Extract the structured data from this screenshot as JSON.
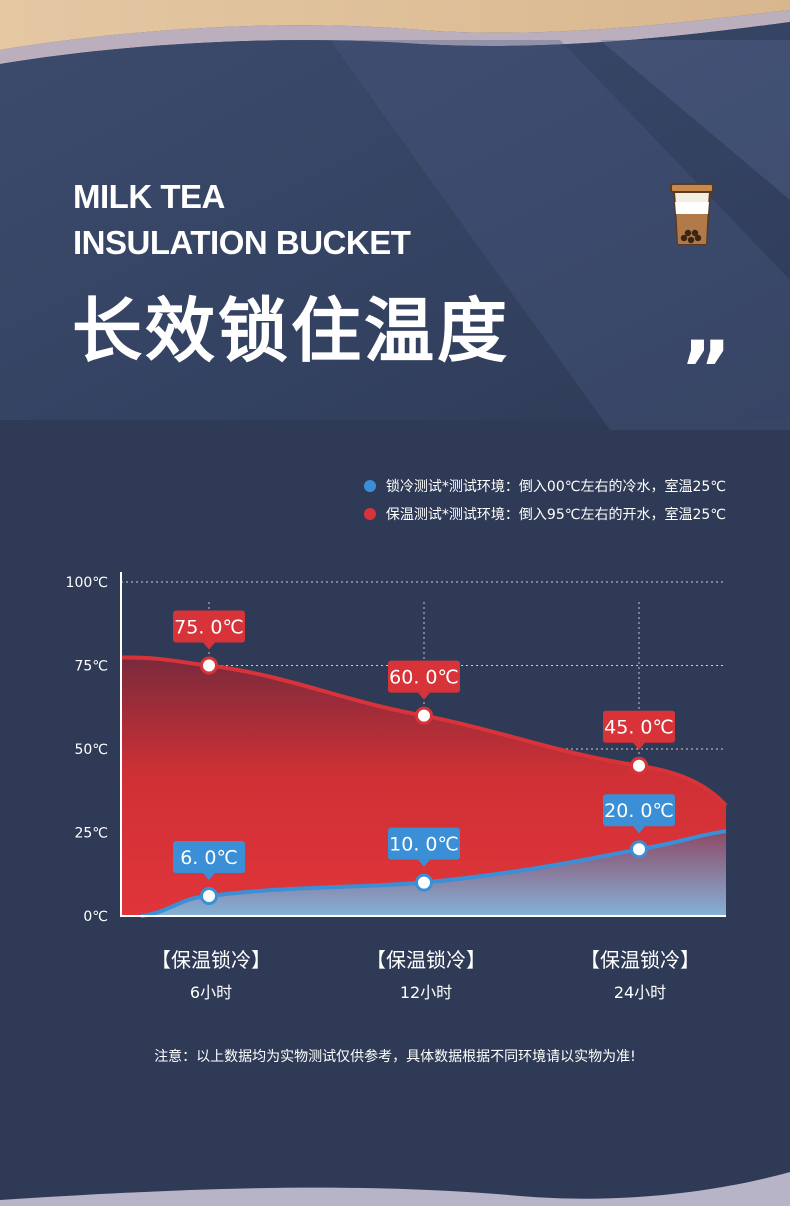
{
  "header": {
    "title_en_line1": "MILK TEA",
    "title_en_line2": "INSULATION BUCKET",
    "title_cn": "长效锁住温度",
    "quote_mark": "”"
  },
  "icons": {
    "cup": "milk-tea-cup-icon"
  },
  "legend": [
    {
      "text": "锁冷测试*测试环境：倒入00℃左右的冷水，室温25℃",
      "color": "#3a8fd6"
    },
    {
      "text": "保温测试*测试环境：倒入95℃左右的开水，室温25℃",
      "color": "#d9333a"
    }
  ],
  "chart_data": {
    "type": "area",
    "ylim": [
      0,
      100
    ],
    "yticks": [
      "100℃",
      "75℃",
      "50℃",
      "25℃",
      "0℃"
    ],
    "ytick_values": [
      100,
      75,
      50,
      25,
      0
    ],
    "categories": [
      {
        "label": "【保温锁冷】",
        "sub": "6小时"
      },
      {
        "label": "【保温锁冷】",
        "sub": "12小时"
      },
      {
        "label": "【保温锁冷】",
        "sub": "24小时"
      }
    ],
    "series": [
      {
        "key": "warm",
        "values": [
          75.0,
          60.0,
          45.0
        ],
        "labels": [
          "75. 0℃",
          "60. 0℃",
          "45. 0℃"
        ],
        "color": "#d9333a"
      },
      {
        "key": "cold",
        "values": [
          6.0,
          10.0,
          20.0
        ],
        "labels": [
          "6. 0℃",
          "10. 0℃",
          "20. 0℃"
        ],
        "color": "#3a8fd6"
      }
    ],
    "grid": true
  },
  "note": "注意：以上数据均为实物测试仅供参考，具体数据根据不同环境请以实物为准!"
}
